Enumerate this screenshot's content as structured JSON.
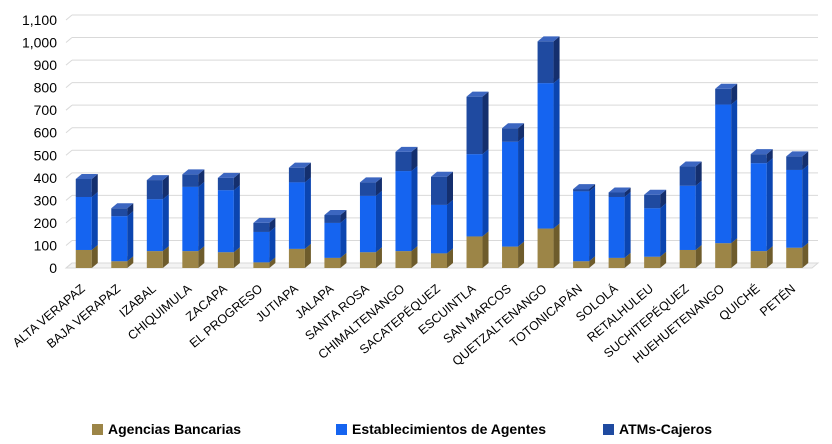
{
  "chart_data": {
    "type": "bar",
    "stacked": true,
    "three_d": true,
    "categories": [
      "ALTA VERAPAZ",
      "BAJA VERAPAZ",
      "IZABAL",
      "CHIQUIMULA",
      "ZACAPA",
      "EL PROGRESO",
      "JUTIAPA",
      "JALAPA",
      "SANTA ROSA",
      "CHIMALTENANGO",
      "SACATEPÉQUEZ",
      "ESCUINTLA",
      "SAN MARCOS",
      "QUETZALTENANGO",
      "TOTONICAPÁN",
      "SOLOLÁ",
      "RETALHULEU",
      "SUCHITEPÉQUEZ",
      "HUEHUETENANGO",
      "QUICHÉ",
      "PETÉN"
    ],
    "series": [
      {
        "name": "Agencias Bancarias",
        "color": "#9c8547",
        "top_color": "#b9a066",
        "side_color": "#6e5c2c",
        "values": [
          80,
          30,
          75,
          75,
          70,
          25,
          85,
          45,
          70,
          75,
          65,
          140,
          95,
          175,
          30,
          45,
          50,
          80,
          110,
          75,
          90
        ]
      },
      {
        "name": "Establecimientos de Agentes",
        "color": "#1564f0",
        "top_color": "#4d8cff",
        "side_color": "#0b45b0",
        "values": [
          235,
          200,
          230,
          285,
          275,
          135,
          295,
          155,
          250,
          355,
          215,
          365,
          465,
          645,
          310,
          270,
          215,
          285,
          615,
          390,
          345
        ]
      },
      {
        "name": "ATMs-Cajeros",
        "color": "#1f4aa0",
        "top_color": "#3c66c0",
        "side_color": "#142f6e",
        "values": [
          80,
          35,
          85,
          55,
          55,
          40,
          65,
          35,
          60,
          85,
          125,
          255,
          60,
          185,
          10,
          20,
          60,
          85,
          70,
          40,
          60
        ]
      }
    ],
    "ylim": [
      0,
      1100
    ],
    "yticks": [
      0,
      100,
      200,
      300,
      400,
      500,
      600,
      700,
      800,
      900,
      1000,
      1100
    ],
    "ytick_labels": [
      "0",
      "100",
      "200",
      "300",
      "400",
      "500",
      "600",
      "700",
      "800",
      "900",
      "1,000",
      "1,100"
    ],
    "grid": true,
    "legend_position": "bottom"
  }
}
